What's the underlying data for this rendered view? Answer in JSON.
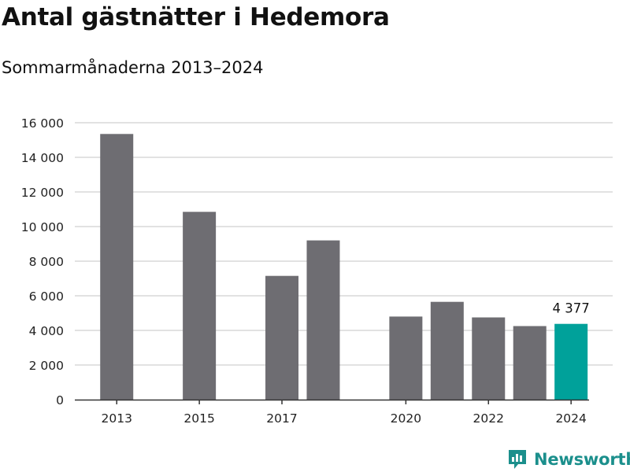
{
  "title": "Antal gästnätter i Hedemora",
  "subtitle": "Sommarmånaderna 2013–2024",
  "brand": {
    "name": "Newsworthy",
    "icon": "newsworthy-logo-icon"
  },
  "colors": {
    "bar": "#6e6d72",
    "highlight": "#00a19a",
    "grid": "#d9d9d9",
    "axis": "#333333",
    "brand": "#1b8f8c"
  },
  "chart_data": {
    "type": "bar",
    "categories": [
      "2013",
      "2014",
      "2015",
      "2016",
      "2017",
      "2018",
      "2019",
      "2020",
      "2021",
      "2022",
      "2023",
      "2024"
    ],
    "values": [
      15350,
      null,
      10850,
      null,
      7150,
      9200,
      null,
      4800,
      5650,
      4750,
      4250,
      4377
    ],
    "tick_labels_x": [
      "2013",
      "",
      "2015",
      "",
      "2017",
      "",
      "",
      "2020",
      "",
      "2022",
      "",
      "2024"
    ],
    "yticks": [
      0,
      2000,
      4000,
      6000,
      8000,
      10000,
      12000,
      14000,
      16000
    ],
    "ytick_labels": [
      "0",
      "2 000",
      "4 000",
      "6 000",
      "8 000",
      "10 000",
      "12 000",
      "14 000",
      "16 000"
    ],
    "ylim": [
      0,
      16000
    ],
    "highlight_index": 11,
    "annotation": {
      "index": 11,
      "text": "4 377"
    },
    "grid": true,
    "xlabel": "",
    "ylabel": ""
  }
}
